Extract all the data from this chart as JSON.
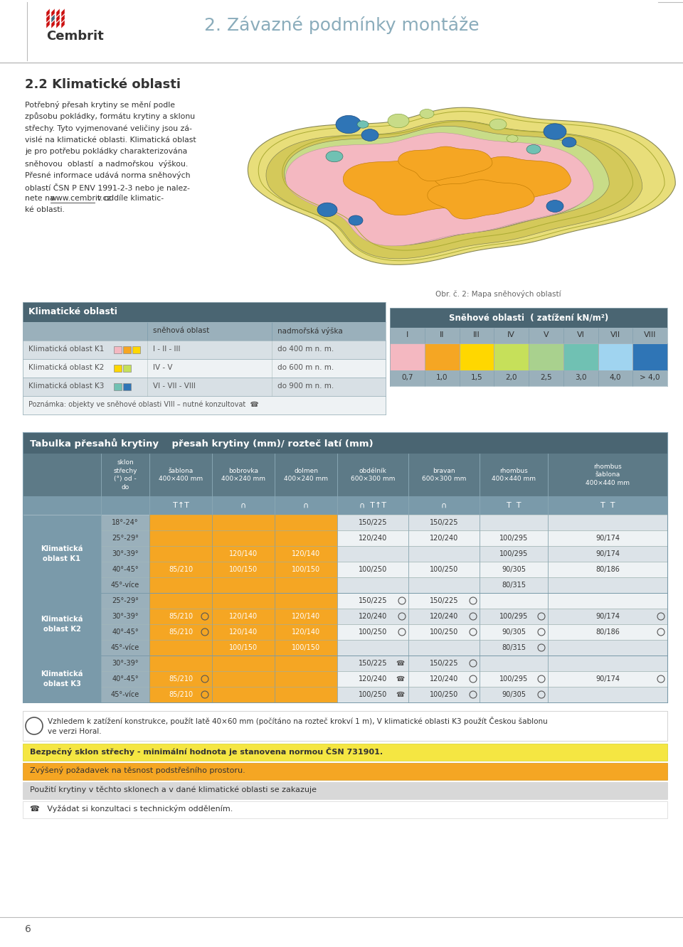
{
  "page_title": "2. Závazné podmínky montáže",
  "section_title": "2.2 Klimatické oblasti",
  "body_lines": [
    "Potřebný přesah krytiny se mění podle",
    "způsobu pokládky, formátu krytiny a sklonu",
    "střechy. Tyto vyjmenované veličiny jsou zá-",
    "vislé na klimatické oblasti. Klimatická oblast",
    "je pro potřebu pokládky charakterizována",
    "sněhovou  oblastí  a nadmořskou  výškou.",
    "Přesné informace udává norma sněhových",
    "oblastí ČSN P ENV 1991-2-3 nebo je nalez-",
    "nete na www.cembrit.cz v oddíle klimatic-",
    "ké oblasti."
  ],
  "map_caption": "Obr. č. 2: Mapa sněhových oblastí",
  "klim_table_title": "Klimatické oblasti",
  "klim_col1": "sněhová oblast",
  "klim_col2": "nadmořská výška",
  "klim_rows": [
    {
      "label": "Klimatická oblast K1",
      "swatches": [
        "#f4b8c1",
        "#f5a623",
        "#ffd700"
      ],
      "snow": "I - II - III",
      "height": "do 400 m n. m."
    },
    {
      "label": "Klimatická oblast K2",
      "swatches": [
        "#ffd700",
        "#c6e05a"
      ],
      "snow": "IV - V",
      "height": "do 600 m n. m."
    },
    {
      "label": "Klimatická oblast K3",
      "swatches": [
        "#70c1b3",
        "#2f75b6"
      ],
      "snow": "VI - VII - VIII",
      "height": "do 900 m n. m."
    }
  ],
  "klim_note": "Poznámka: objekty ve sněhové oblasti VIII – nutné konzultovat  ☎",
  "snow_table_title": "Sněhové oblasti  ( zatížení kN/m²)",
  "snow_cols": [
    "I",
    "II",
    "III",
    "IV",
    "V",
    "VI",
    "VII",
    "VIII"
  ],
  "snow_colors": [
    "#f4b8c1",
    "#f5a623",
    "#ffd700",
    "#c6e05a",
    "#a9d18e",
    "#70c1b3",
    "#a0d4f0",
    "#2f75b6"
  ],
  "snow_values": [
    "0,7",
    "1,0",
    "1,5",
    "2,0",
    "2,5",
    "3,0",
    "4,0",
    "> 4,0"
  ],
  "main_table_title": "Tabulka přesahů krytiny    přesah krytiny (mm)/ rozteč latí (mm)",
  "sections": [
    {
      "label": "Klimatická\noblast K1",
      "bg": "#dce3e8",
      "rows": [
        {
          "sklon": "18°-24°",
          "sab": "",
          "bob": "",
          "dol": "",
          "obd": "150/225",
          "bra": "150/225",
          "rho": "",
          "rhs": "",
          "obd_sym": "",
          "bra_sym": "",
          "rho_sym": "",
          "rhs_sym": ""
        },
        {
          "sklon": "25°-29°",
          "sab": "",
          "bob": "",
          "dol": "",
          "obd": "120/240",
          "bra": "120/240",
          "rho": "100/295",
          "rhs": "90/174",
          "obd_sym": "",
          "bra_sym": "",
          "rho_sym": "",
          "rhs_sym": ""
        },
        {
          "sklon": "30°-39°",
          "sab": "",
          "bob": "120/140",
          "dol": "120/140",
          "obd": "",
          "bra": "",
          "rho": "100/295",
          "rhs": "90/174",
          "obd_sym": "",
          "bra_sym": "",
          "rho_sym": "",
          "rhs_sym": ""
        },
        {
          "sklon": "40°-45°",
          "sab": "85/210",
          "bob": "100/150",
          "dol": "100/150",
          "obd": "100/250",
          "bra": "100/250",
          "rho": "90/305",
          "rhs": "80/186",
          "obd_sym": "",
          "bra_sym": "",
          "rho_sym": "",
          "rhs_sym": ""
        },
        {
          "sklon": "45°-více",
          "sab": "",
          "bob": "",
          "dol": "",
          "obd": "",
          "bra": "",
          "rho": "80/315",
          "rhs": "",
          "obd_sym": "",
          "bra_sym": "",
          "rho_sym": "",
          "rhs_sym": ""
        }
      ]
    },
    {
      "label": "Klimatická\noblast K2",
      "bg": "#eef2f4",
      "rows": [
        {
          "sklon": "25°-29°",
          "sab": "",
          "bob": "",
          "dol": "",
          "obd": "150/225",
          "bra": "150/225",
          "rho": "",
          "rhs": "",
          "obd_sym": "O",
          "bra_sym": "O",
          "rho_sym": "",
          "rhs_sym": ""
        },
        {
          "sklon": "30°-39°",
          "sab": "85/210",
          "bob": "120/140",
          "dol": "120/140",
          "obd": "120/240",
          "bra": "120/240",
          "rho": "100/295",
          "rhs": "90/174",
          "obd_sym": "O",
          "bra_sym": "O",
          "rho_sym": "O",
          "rhs_sym": "O",
          "sab_sym": "O"
        },
        {
          "sklon": "40°-45°",
          "sab": "85/210",
          "bob": "120/140",
          "dol": "120/140",
          "obd": "100/250",
          "bra": "100/250",
          "rho": "90/305",
          "rhs": "80/186",
          "obd_sym": "O",
          "bra_sym": "O",
          "rho_sym": "O",
          "rhs_sym": "O",
          "sab_sym": "O"
        },
        {
          "sklon": "45°-více",
          "sab": "",
          "bob": "100/150",
          "dol": "100/150",
          "obd": "",
          "bra": "",
          "rho": "80/315",
          "rhs": "",
          "obd_sym": "",
          "bra_sym": "",
          "rho_sym": "O",
          "rhs_sym": ""
        }
      ]
    },
    {
      "label": "Klimatická\noblast K3",
      "bg": "#dce3e8",
      "rows": [
        {
          "sklon": "30°-39°",
          "sab": "",
          "bob": "",
          "dol": "",
          "obd": "150/225",
          "bra": "150/225",
          "rho": "",
          "rhs": "",
          "obd_sym": "T",
          "bra_sym": "O",
          "rho_sym": "",
          "rhs_sym": ""
        },
        {
          "sklon": "40°-45°",
          "sab": "85/210",
          "bob": "",
          "dol": "",
          "obd": "120/240",
          "bra": "120/240",
          "rho": "100/295",
          "rhs": "90/174",
          "obd_sym": "T",
          "bra_sym": "O",
          "rho_sym": "O",
          "rhs_sym": "O",
          "sab_sym": "O"
        },
        {
          "sklon": "45°-více",
          "sab": "85/210",
          "bob": "",
          "dol": "",
          "obd": "100/250",
          "bra": "100/250",
          "rho": "90/305",
          "rhs": "",
          "obd_sym": "T",
          "bra_sym": "O",
          "rho_sym": "O",
          "rhs_sym": "",
          "sab_sym": "O"
        }
      ]
    }
  ],
  "note1a": "Vzhledem k zatížení konstrukce, použít latě 40×60 mm (počítáno na rozteč krokví 1 m), V klimatické oblasti K3 použít Českou šablonu",
  "note1b": "ve verzi Horal.",
  "note2": "Bezpečný sklon střechy - minimální hodnota je stanovena normou ČSN 731901.",
  "note3": "Zvýšený požadavek na těsnost podstřešního prostoru.",
  "note4": "Použití krytiny v těchto sklonech a v dané klimatické oblasti se zakazuje",
  "note5": "Vyžádat si konzultaci s technickým oddělením.",
  "page_num": "6",
  "color_header_dark": "#4a6572",
  "color_header_mid": "#5d7a87",
  "color_header_light": "#7a9aaa",
  "color_sklon_bg": "#9ab0bb",
  "color_orange": "#f5a623",
  "color_note2_bg": "#f5e642",
  "color_note3_bg": "#f5a623",
  "color_note4_bg": "#d8d8d8",
  "color_white": "#ffffff",
  "color_row_alt1": "#dce3e8",
  "color_row_alt2": "#eef2f4",
  "color_text_dark": "#333333",
  "color_text_white": "#ffffff"
}
